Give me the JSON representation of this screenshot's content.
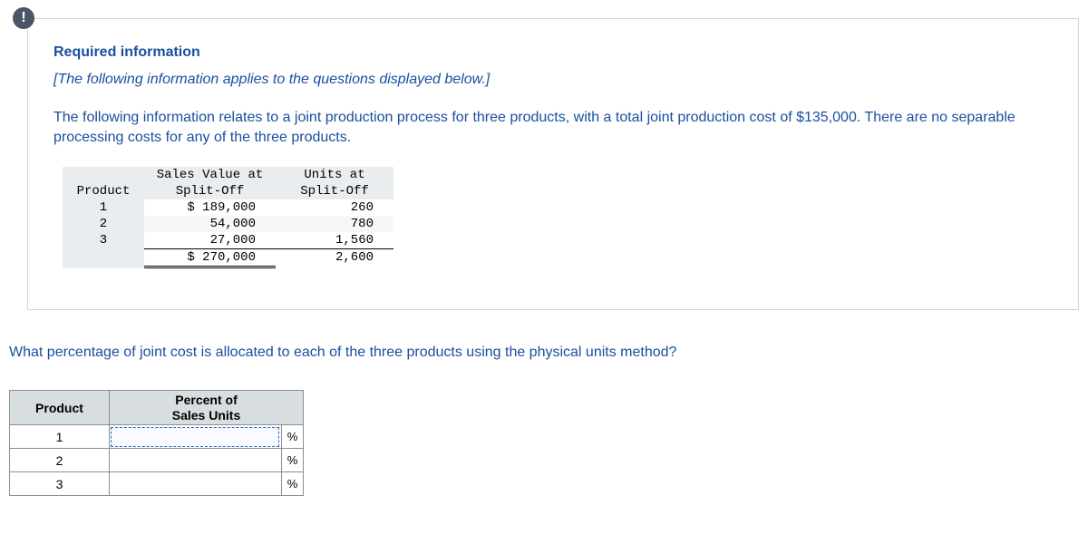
{
  "badge": "!",
  "heading": "Required information",
  "instruction": "[The following information applies to the questions displayed below.]",
  "body_text": "The following information relates to a joint production process for three products, with a total joint production cost of $135,000. There are no separable processing costs for any of the three products.",
  "data_table": {
    "header": {
      "product": "Product",
      "sales_value_l1": "Sales Value at",
      "sales_value_l2": "Split-Off",
      "units_l1": "Units at",
      "units_l2": "Split-Off"
    },
    "rows": [
      {
        "product": "1",
        "sales_value": "$ 189,000",
        "units": "260"
      },
      {
        "product": "2",
        "sales_value": "54,000",
        "units": "780"
      },
      {
        "product": "3",
        "sales_value": "27,000",
        "units": "1,560"
      }
    ],
    "totals": {
      "sales_value": "$ 270,000",
      "units": "2,600"
    },
    "colors": {
      "header_bg": "#e9edf0",
      "alt_bg": "#f5f7f8",
      "text": "#000000"
    }
  },
  "question": "What percentage of joint cost is allocated to each of the three products using the physical units method?",
  "answer_table": {
    "columns": {
      "product": "Product",
      "percent_l1": "Percent of",
      "percent_l2": "Sales Units"
    },
    "rows": [
      {
        "product": "1",
        "value": "",
        "suffix": "%"
      },
      {
        "product": "2",
        "value": "",
        "suffix": "%"
      },
      {
        "product": "3",
        "value": "",
        "suffix": "%"
      }
    ],
    "colors": {
      "header_bg": "#d8dde0",
      "border": "#8a8f94",
      "input_border": "#2a6db0"
    }
  }
}
